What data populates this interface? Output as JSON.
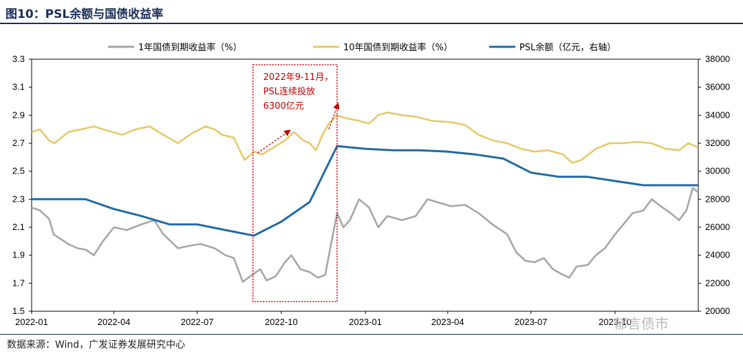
{
  "header": {
    "title": "图10：PSL余额与国债收益率"
  },
  "footer": {
    "source": "数据来源：Wind，广发证券发展研究中心",
    "watermark": "郁言债市"
  },
  "chart_data": {
    "type": "line",
    "x_tick_labels": [
      "2022-01",
      "2022-04",
      "2022-07",
      "2022-10",
      "2023-01",
      "2023-04",
      "2023-07",
      "2023-10"
    ],
    "y_left": {
      "ticks": [
        1.5,
        1.7,
        1.9,
        2.1,
        2.3,
        2.5,
        2.7,
        2.9,
        3.1,
        3.3
      ],
      "ylim": [
        1.5,
        3.3
      ]
    },
    "y_right": {
      "ticks": [
        20000,
        22000,
        24000,
        26000,
        28000,
        30000,
        32000,
        34000,
        36000,
        38000
      ],
      "ylim": [
        20000,
        38000
      ]
    },
    "grid": false,
    "legend_position": "top",
    "series": [
      {
        "name": "1年国债到期收益率（%）",
        "axis": "left",
        "color": "#a6a6a6",
        "points": [
          [
            "2022-01-01",
            2.24
          ],
          [
            "2022-01-10",
            2.22
          ],
          [
            "2022-01-20",
            2.16
          ],
          [
            "2022-01-25",
            2.05
          ],
          [
            "2022-02-10",
            1.98
          ],
          [
            "2022-02-20",
            1.95
          ],
          [
            "2022-03-01",
            1.94
          ],
          [
            "2022-03-10",
            1.9
          ],
          [
            "2022-03-20",
            2.0
          ],
          [
            "2022-04-01",
            2.1
          ],
          [
            "2022-04-15",
            2.08
          ],
          [
            "2022-05-01",
            2.12
          ],
          [
            "2022-05-15",
            2.15
          ],
          [
            "2022-05-25",
            2.05
          ],
          [
            "2022-06-10",
            1.95
          ],
          [
            "2022-06-25",
            1.97
          ],
          [
            "2022-07-05",
            1.98
          ],
          [
            "2022-07-20",
            1.95
          ],
          [
            "2022-08-01",
            1.9
          ],
          [
            "2022-08-10",
            1.88
          ],
          [
            "2022-08-20",
            1.71
          ],
          [
            "2022-08-28",
            1.75
          ],
          [
            "2022-09-08",
            1.8
          ],
          [
            "2022-09-15",
            1.72
          ],
          [
            "2022-09-25",
            1.75
          ],
          [
            "2022-10-05",
            1.85
          ],
          [
            "2022-10-12",
            1.9
          ],
          [
            "2022-10-22",
            1.8
          ],
          [
            "2022-11-01",
            1.78
          ],
          [
            "2022-11-10",
            1.74
          ],
          [
            "2022-11-18",
            1.76
          ],
          [
            "2022-11-25",
            2.0
          ],
          [
            "2022-12-01",
            2.2
          ],
          [
            "2022-12-08",
            2.1
          ],
          [
            "2022-12-15",
            2.15
          ],
          [
            "2022-12-25",
            2.3
          ],
          [
            "2023-01-05",
            2.24
          ],
          [
            "2023-01-15",
            2.1
          ],
          [
            "2023-01-25",
            2.18
          ],
          [
            "2023-02-10",
            2.15
          ],
          [
            "2023-02-25",
            2.18
          ],
          [
            "2023-03-10",
            2.3
          ],
          [
            "2023-03-20",
            2.28
          ],
          [
            "2023-04-05",
            2.25
          ],
          [
            "2023-04-20",
            2.26
          ],
          [
            "2023-05-05",
            2.2
          ],
          [
            "2023-05-20",
            2.12
          ],
          [
            "2023-06-05",
            2.05
          ],
          [
            "2023-06-15",
            1.92
          ],
          [
            "2023-06-25",
            1.86
          ],
          [
            "2023-07-05",
            1.85
          ],
          [
            "2023-07-15",
            1.88
          ],
          [
            "2023-07-25",
            1.8
          ],
          [
            "2023-08-05",
            1.76
          ],
          [
            "2023-08-12",
            1.74
          ],
          [
            "2023-08-20",
            1.82
          ],
          [
            "2023-09-01",
            1.83
          ],
          [
            "2023-09-10",
            1.9
          ],
          [
            "2023-09-20",
            1.95
          ],
          [
            "2023-10-01",
            2.05
          ],
          [
            "2023-10-10",
            2.12
          ],
          [
            "2023-10-20",
            2.2
          ],
          [
            "2023-11-01",
            2.22
          ],
          [
            "2023-11-10",
            2.3
          ],
          [
            "2023-11-20",
            2.25
          ],
          [
            "2023-12-01",
            2.2
          ],
          [
            "2023-12-10",
            2.15
          ],
          [
            "2023-12-18",
            2.22
          ],
          [
            "2023-12-25",
            2.38
          ],
          [
            "2023-12-31",
            2.35
          ]
        ]
      },
      {
        "name": "10年国债到期收益率（%）",
        "axis": "left",
        "color": "#e6c96b",
        "points": [
          [
            "2022-01-01",
            2.78
          ],
          [
            "2022-01-10",
            2.8
          ],
          [
            "2022-01-20",
            2.72
          ],
          [
            "2022-01-26",
            2.7
          ],
          [
            "2022-02-10",
            2.78
          ],
          [
            "2022-02-25",
            2.8
          ],
          [
            "2022-03-10",
            2.82
          ],
          [
            "2022-03-25",
            2.79
          ],
          [
            "2022-04-10",
            2.76
          ],
          [
            "2022-04-25",
            2.8
          ],
          [
            "2022-05-10",
            2.82
          ],
          [
            "2022-05-25",
            2.76
          ],
          [
            "2022-06-10",
            2.7
          ],
          [
            "2022-06-25",
            2.77
          ],
          [
            "2022-07-10",
            2.82
          ],
          [
            "2022-07-20",
            2.8
          ],
          [
            "2022-07-28",
            2.76
          ],
          [
            "2022-08-10",
            2.74
          ],
          [
            "2022-08-18",
            2.63
          ],
          [
            "2022-08-22",
            2.58
          ],
          [
            "2022-09-01",
            2.64
          ],
          [
            "2022-09-10",
            2.62
          ],
          [
            "2022-09-25",
            2.68
          ],
          [
            "2022-10-05",
            2.72
          ],
          [
            "2022-10-15",
            2.78
          ],
          [
            "2022-10-25",
            2.72
          ],
          [
            "2022-11-01",
            2.7
          ],
          [
            "2022-11-08",
            2.65
          ],
          [
            "2022-11-15",
            2.76
          ],
          [
            "2022-11-22",
            2.84
          ],
          [
            "2022-12-01",
            2.9
          ],
          [
            "2022-12-10",
            2.88
          ],
          [
            "2022-12-25",
            2.86
          ],
          [
            "2023-01-05",
            2.84
          ],
          [
            "2023-01-15",
            2.9
          ],
          [
            "2023-01-25",
            2.92
          ],
          [
            "2023-02-10",
            2.9
          ],
          [
            "2023-02-25",
            2.89
          ],
          [
            "2023-03-15",
            2.86
          ],
          [
            "2023-04-05",
            2.85
          ],
          [
            "2023-04-20",
            2.83
          ],
          [
            "2023-05-05",
            2.76
          ],
          [
            "2023-05-20",
            2.72
          ],
          [
            "2023-06-05",
            2.7
          ],
          [
            "2023-06-20",
            2.66
          ],
          [
            "2023-07-05",
            2.64
          ],
          [
            "2023-07-20",
            2.65
          ],
          [
            "2023-08-05",
            2.62
          ],
          [
            "2023-08-15",
            2.56
          ],
          [
            "2023-08-25",
            2.58
          ],
          [
            "2023-09-10",
            2.66
          ],
          [
            "2023-09-25",
            2.7
          ],
          [
            "2023-10-10",
            2.7
          ],
          [
            "2023-10-25",
            2.71
          ],
          [
            "2023-11-10",
            2.7
          ],
          [
            "2023-11-25",
            2.66
          ],
          [
            "2023-12-10",
            2.65
          ],
          [
            "2023-12-20",
            2.7
          ],
          [
            "2023-12-31",
            2.67
          ]
        ]
      },
      {
        "name": "PSL余额（亿元，右轴）",
        "axis": "right",
        "color": "#1f6aa5",
        "points": [
          [
            "2022-01-01",
            28000
          ],
          [
            "2022-03-01",
            28000
          ],
          [
            "2022-04-01",
            27300
          ],
          [
            "2022-05-01",
            26800
          ],
          [
            "2022-06-01",
            26200
          ],
          [
            "2022-07-01",
            26200
          ],
          [
            "2022-08-01",
            25800
          ],
          [
            "2022-09-01",
            25400
          ],
          [
            "2022-10-01",
            26400
          ],
          [
            "2022-11-01",
            27800
          ],
          [
            "2022-12-01",
            31800
          ],
          [
            "2023-01-01",
            31600
          ],
          [
            "2023-02-01",
            31500
          ],
          [
            "2023-03-01",
            31500
          ],
          [
            "2023-04-01",
            31400
          ],
          [
            "2023-05-01",
            31200
          ],
          [
            "2023-06-01",
            30900
          ],
          [
            "2023-07-01",
            29900
          ],
          [
            "2023-08-01",
            29600
          ],
          [
            "2023-09-01",
            29600
          ],
          [
            "2023-10-01",
            29300
          ],
          [
            "2023-11-01",
            29000
          ],
          [
            "2023-12-01",
            29000
          ],
          [
            "2023-12-31",
            29000
          ]
        ]
      }
    ],
    "annotation": {
      "lines": [
        "2022年9-11月，",
        "PSL连续投放",
        "6300亿元"
      ],
      "color": "#c00000"
    }
  }
}
